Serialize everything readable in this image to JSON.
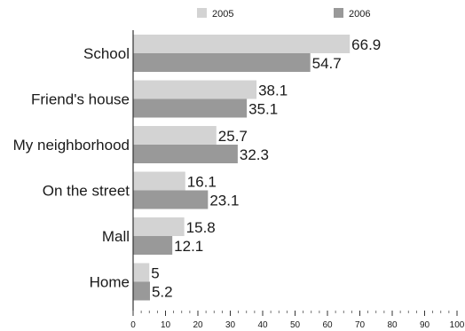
{
  "chart_data": {
    "type": "bar",
    "orientation": "horizontal",
    "categories": [
      "School",
      "Friend's house",
      "My neighborhood",
      "On the street",
      "Mall",
      "Home"
    ],
    "series": [
      {
        "name": "2005",
        "values": [
          66.9,
          38.1,
          25.7,
          16.1,
          15.8,
          5
        ],
        "color": "#d3d3d3"
      },
      {
        "name": "2006",
        "values": [
          54.7,
          35.1,
          32.3,
          23.1,
          12.1,
          5.2
        ],
        "color": "#999999"
      }
    ],
    "xlim": [
      0,
      100
    ],
    "xticks": [
      0,
      10,
      20,
      30,
      40,
      50,
      60,
      70,
      80,
      90,
      100
    ],
    "grid": false,
    "legend_position": "top"
  }
}
